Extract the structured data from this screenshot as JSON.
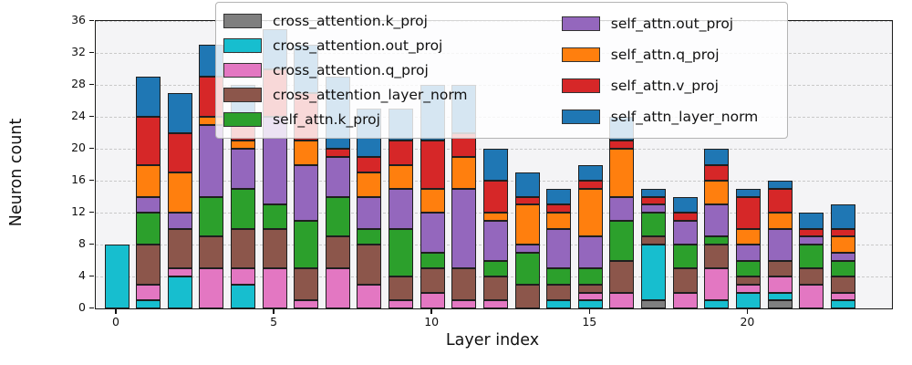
{
  "figure": {
    "y_axis_label": "Neuron count",
    "x_axis_label": "Layer index"
  },
  "chart_data": {
    "type": "bar",
    "stacked": true,
    "title": "",
    "xlabel": "Layer index",
    "ylabel": "Neuron count",
    "ylim": [
      0,
      36
    ],
    "y_ticks": [
      0,
      4,
      8,
      12,
      16,
      20,
      24,
      28,
      32,
      36
    ],
    "x_ticks": [
      0,
      5,
      10,
      15,
      20
    ],
    "grid": true,
    "legend_position": "upper right",
    "legend_columns": 2,
    "categories": [
      0,
      1,
      2,
      3,
      4,
      5,
      6,
      7,
      8,
      9,
      10,
      11,
      12,
      13,
      14,
      15,
      16,
      17,
      18,
      19,
      20,
      21,
      22,
      23
    ],
    "series": [
      {
        "name": "cross_attention.k_proj",
        "color": "#7f7f7f",
        "values": [
          0,
          0,
          0,
          0,
          0,
          0,
          0,
          0,
          0,
          0,
          0,
          0,
          0,
          0,
          0,
          0,
          0,
          1,
          0,
          0,
          0,
          1,
          0,
          0
        ]
      },
      {
        "name": "cross_attention.out_proj",
        "color": "#17becf",
        "values": [
          8,
          1,
          4,
          0,
          3,
          0,
          0,
          0,
          0,
          0,
          0,
          0,
          0,
          0,
          1,
          1,
          0,
          7,
          0,
          1,
          2,
          1,
          0,
          1
        ]
      },
      {
        "name": "cross_attention.q_proj",
        "color": "#e377c2",
        "values": [
          0,
          2,
          1,
          5,
          2,
          5,
          1,
          5,
          3,
          1,
          2,
          1,
          1,
          0,
          0,
          1,
          2,
          0,
          2,
          4,
          1,
          2,
          3,
          1
        ]
      },
      {
        "name": "cross_attention_layer_norm",
        "color": "#8c564b",
        "values": [
          0,
          5,
          5,
          4,
          5,
          5,
          4,
          4,
          5,
          3,
          3,
          4,
          3,
          3,
          2,
          1,
          4,
          1,
          3,
          3,
          1,
          2,
          2,
          2
        ]
      },
      {
        "name": "self_attn.k_proj",
        "color": "#2ca02c",
        "values": [
          0,
          4,
          0,
          5,
          5,
          3,
          6,
          5,
          2,
          6,
          2,
          0,
          2,
          4,
          2,
          2,
          5,
          3,
          3,
          1,
          2,
          0,
          3,
          2
        ]
      },
      {
        "name": "self_attn.out_proj",
        "color": "#9467bd",
        "values": [
          0,
          2,
          2,
          9,
          5,
          11,
          7,
          5,
          4,
          5,
          5,
          10,
          5,
          1,
          5,
          4,
          3,
          1,
          3,
          4,
          2,
          4,
          1,
          1
        ]
      },
      {
        "name": "self_attn.q_proj",
        "color": "#ff7f0e",
        "values": [
          0,
          4,
          5,
          1,
          1,
          0,
          3,
          0,
          3,
          3,
          3,
          4,
          1,
          5,
          2,
          6,
          6,
          0,
          0,
          3,
          2,
          2,
          0,
          2
        ]
      },
      {
        "name": "self_attn.v_proj",
        "color": "#d62728",
        "values": [
          0,
          6,
          5,
          5,
          2,
          6,
          6,
          1,
          2,
          3,
          6,
          3,
          4,
          1,
          1,
          1,
          1,
          1,
          1,
          2,
          4,
          3,
          1,
          1
        ]
      },
      {
        "name": "self_attn_layer_norm",
        "color": "#1f77b4",
        "values": [
          0,
          5,
          5,
          4,
          5,
          5,
          6,
          9,
          6,
          4,
          7,
          6,
          4,
          3,
          2,
          2,
          3,
          1,
          2,
          2,
          1,
          1,
          2,
          3
        ]
      }
    ]
  }
}
